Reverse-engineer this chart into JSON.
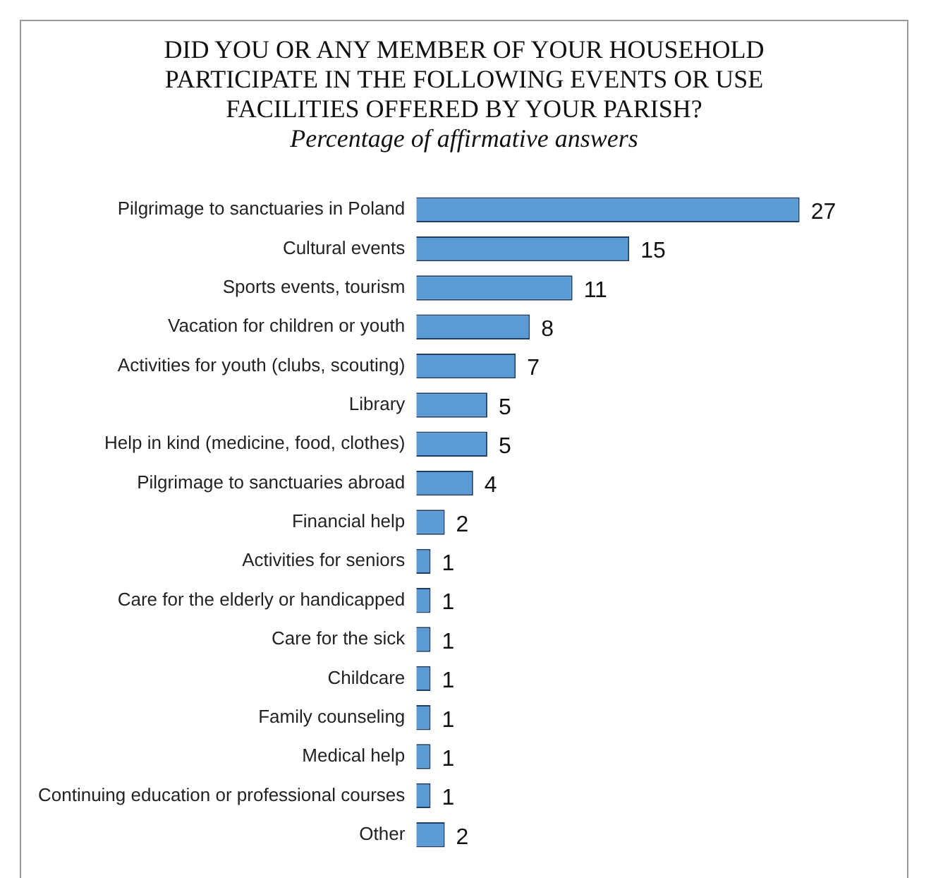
{
  "chart_data": {
    "type": "bar",
    "orientation": "horizontal",
    "title": "DID YOU OR ANY MEMBER OF YOUR HOUSEHOLD PARTICIPATE IN THE FOLLOWING EVENTS OR USE FACILITIES OFFERED BY YOUR PARISH?",
    "subtitle": "Percentage of affirmative answers",
    "categories": [
      "Pilgrimage to sanctuaries in Poland",
      "Cultural events",
      "Sports events, tourism",
      "Vacation for children or youth",
      "Activities for youth (clubs, scouting)",
      "Library",
      "Help in kind (medicine, food, clothes)",
      "Pilgrimage to sanctuaries abroad",
      "Financial help",
      "Activities for seniors",
      "Care for the elderly or handicapped",
      "Care for the sick",
      "Childcare",
      "Family counseling",
      "Medical help",
      "Continuing education or professional courses",
      "Other"
    ],
    "values": [
      27,
      15,
      11,
      8,
      7,
      5,
      5,
      4,
      2,
      1,
      1,
      1,
      1,
      1,
      1,
      1,
      2
    ],
    "color": "#5b9bd5",
    "data_labels": true
  }
}
